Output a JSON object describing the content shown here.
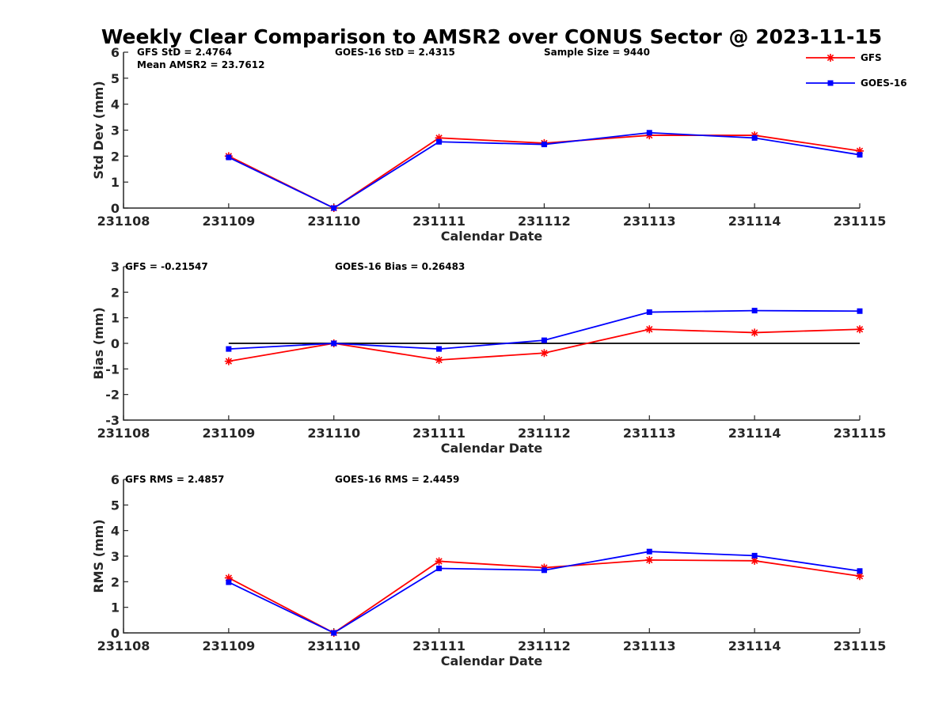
{
  "figure_title": "Weekly Clear Comparison to AMSR2 over CONUS Sector @ 2023-11-15",
  "legend": {
    "placement": "top-right",
    "entries": [
      {
        "name": "GFS",
        "color": "#ff0000",
        "marker": "asterisk"
      },
      {
        "name": "GOES-16",
        "color": "#0000ff",
        "marker": "square"
      }
    ]
  },
  "chart_data": [
    {
      "type": "line",
      "xlabel": "Calendar Date",
      "ylabel": "Std Dev (mm)",
      "ylim": [
        0,
        6
      ],
      "yticks": [
        "0",
        "1",
        "2",
        "3",
        "4",
        "5",
        "6"
      ],
      "xticks": [
        "231108",
        "231109",
        "231110",
        "231111",
        "231112",
        "231113",
        "231114",
        "231115"
      ],
      "x": [
        "231109",
        "231110",
        "231111",
        "231112",
        "231113",
        "231114",
        "231115"
      ],
      "series": [
        {
          "name": "GFS",
          "color": "#ff0000",
          "values": [
            2.0,
            0.0,
            2.7,
            2.5,
            2.8,
            2.8,
            2.2
          ]
        },
        {
          "name": "GOES-16",
          "color": "#0000ff",
          "values": [
            1.95,
            0.0,
            2.55,
            2.45,
            2.9,
            2.7,
            2.05
          ]
        }
      ],
      "annotations": [
        "GFS StD = 2.4764",
        "GOES-16 StD = 2.4315",
        "Sample Size = 9440",
        "Mean AMSR2 = 23.7612"
      ]
    },
    {
      "type": "line",
      "xlabel": "Calendar Date",
      "ylabel": "Bias (mm)",
      "ylim": [
        -3,
        3
      ],
      "yticks": [
        "-3",
        "-2",
        "-1",
        "0",
        "1",
        "2",
        "3"
      ],
      "xticks": [
        "231108",
        "231109",
        "231110",
        "231111",
        "231112",
        "231113",
        "231114",
        "231115"
      ],
      "x": [
        "231109",
        "231110",
        "231111",
        "231112",
        "231113",
        "231114",
        "231115"
      ],
      "zero_line": true,
      "series": [
        {
          "name": "GFS",
          "color": "#ff0000",
          "values": [
            -0.7,
            0.0,
            -0.65,
            -0.38,
            0.55,
            0.42,
            0.55
          ]
        },
        {
          "name": "GOES-16",
          "color": "#0000ff",
          "values": [
            -0.22,
            0.0,
            -0.22,
            0.12,
            1.22,
            1.28,
            1.26
          ]
        }
      ],
      "annotations": [
        "GFS = -0.21547",
        "GOES-16 Bias  = 0.26483"
      ]
    },
    {
      "type": "line",
      "xlabel": "Calendar Date",
      "ylabel": "RMS (mm)",
      "ylim": [
        0,
        6
      ],
      "yticks": [
        "0",
        "1",
        "2",
        "3",
        "4",
        "5",
        "6"
      ],
      "xticks": [
        "231108",
        "231109",
        "231110",
        "231111",
        "231112",
        "231113",
        "231114",
        "231115"
      ],
      "x": [
        "231109",
        "231110",
        "231111",
        "231112",
        "231113",
        "231114",
        "231115"
      ],
      "series": [
        {
          "name": "GFS",
          "color": "#ff0000",
          "values": [
            2.15,
            0.0,
            2.8,
            2.55,
            2.85,
            2.82,
            2.22
          ]
        },
        {
          "name": "GOES-16",
          "color": "#0000ff",
          "values": [
            1.98,
            0.0,
            2.52,
            2.45,
            3.18,
            3.02,
            2.42
          ]
        }
      ],
      "annotations": [
        "GFS RMS = 2.4857",
        "GOES-16 RMS = 2.4459"
      ]
    }
  ]
}
